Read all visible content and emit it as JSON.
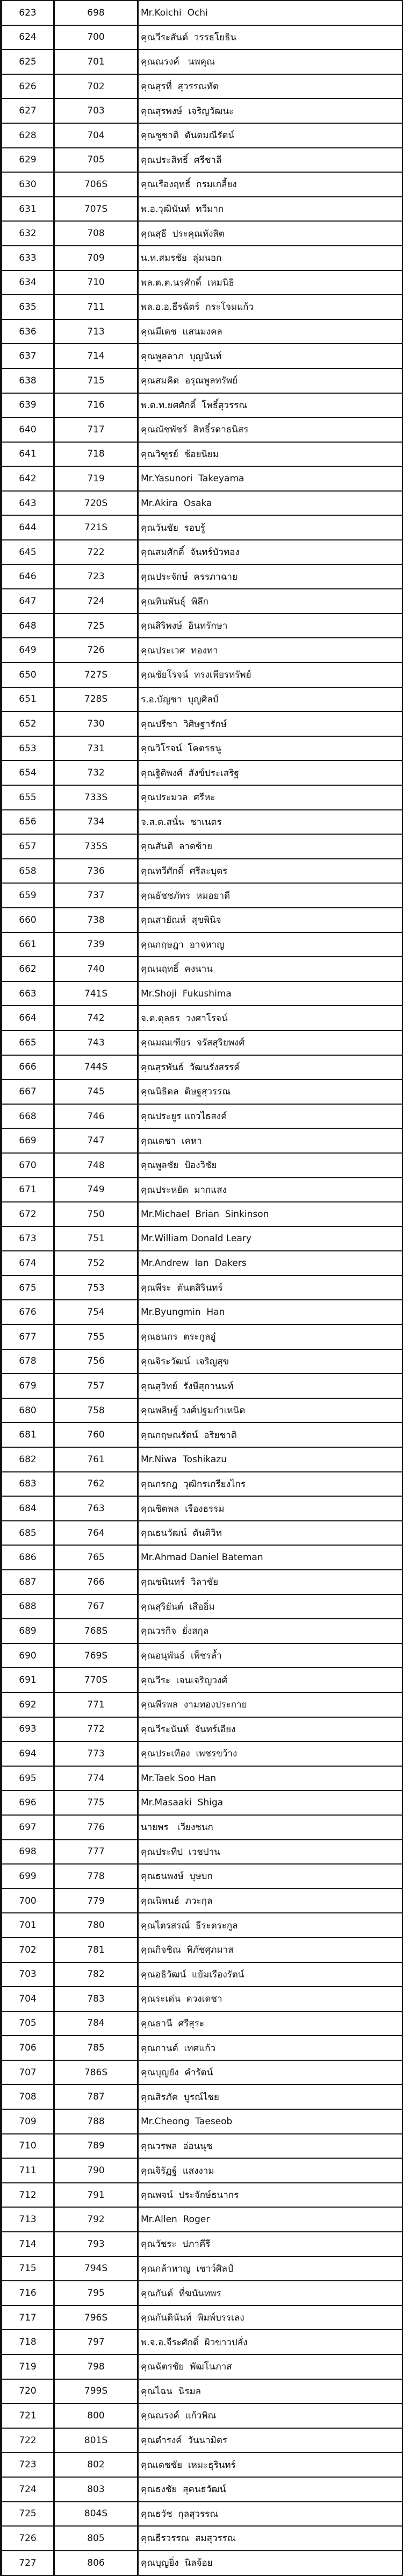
{
  "rows": [
    [
      "623",
      "698",
      "Mr.Koichi  Ochi"
    ],
    [
      "624",
      "700",
      "คุณวีระสันต์  วรรธโยธิน"
    ],
    [
      "625",
      "701",
      "คุณณรงค์   นพคุณ"
    ],
    [
      "626",
      "702",
      "คุณสุรที่  สุวรรณทัต"
    ],
    [
      "627",
      "703",
      "คุณสุรพงษ์  เจริญวัฒนะ"
    ],
    [
      "628",
      "704",
      "คุณชูชาติ  ตันตมณีรัตน์"
    ],
    [
      "629",
      "705",
      "คุณประสิทธิ์  ศรีชาลี"
    ],
    [
      "630",
      "706S",
      "คุณเรืองฤทธิ์  กรมเกลี้ยง"
    ],
    [
      "631",
      "707S",
      "พ.อ.วุฒินันท์  ทวีมาก"
    ],
    [
      "632",
      "708",
      "คุณสุธี  ประคุณหังสิต"
    ],
    [
      "633",
      "709",
      "น.ท.สมรชัย  ลุ่มนอก"
    ],
    [
      "634",
      "710",
      "พล.ต.ต.นรศักดิ์  เหมนิธิ"
    ],
    [
      "635",
      "711",
      "พล.อ.อ.ธีรฉัตร์  กระโจมแก้ว"
    ],
    [
      "636",
      "713",
      "คุณมีเดช  แสนมงคล"
    ],
    [
      "637",
      "714",
      "คุณพูลลาภ  บุญนันท์"
    ],
    [
      "638",
      "715",
      "คุณสมคิด  อรุณพูลทรัพย์"
    ],
    [
      "639",
      "716",
      "พ.ต.ท.ยศศักดิ์  โพธิ์สุวรรณ"
    ],
    [
      "640",
      "717",
      "คุณณัชพัชร์  สิทธิ์รดาธนิสร"
    ],
    [
      "641",
      "718",
      "คุณวิฑูรย์  ช้อยนิยม"
    ],
    [
      "642",
      "719",
      "Mr.Yasunori  Takeyama"
    ],
    [
      "643",
      "720S",
      "Mr.Akira  Osaka"
    ],
    [
      "644",
      "721S",
      "คุณวันชัย  รอบรู้"
    ],
    [
      "645",
      "722",
      "คุณสมศักดิ์  จันทร์บัวทอง"
    ],
    [
      "646",
      "723",
      "คุณประจักษ์  ครรภาฉาย"
    ],
    [
      "647",
      "724",
      "คุณทินพันธุ์  พิลึก"
    ],
    [
      "648",
      "725",
      "คุณสิริพงษ์  อินทรักษา"
    ],
    [
      "649",
      "726",
      "คุณประเวศ  ทองทา"
    ],
    [
      "650",
      "727S",
      "คุณชัยโรจน์  ทรงเพียรทรัพย์"
    ],
    [
      "651",
      "728S",
      "ร.อ.บัญชา  บุญศิลป์"
    ],
    [
      "652",
      "730",
      "คุณปรีชา  วิศิษฐารักษ์"
    ],
    [
      "653",
      "731",
      "คุณวิโรจน์  โคตรธนู"
    ],
    [
      "654",
      "732",
      "คุณฐิติพงศ์  สังข์ประเสริฐ"
    ],
    [
      "655",
      "733S",
      "คุณประมวล  ศรีหะ"
    ],
    [
      "656",
      "734",
      "จ.ส.ต.สนั่น  ชาเนตร"
    ],
    [
      "657",
      "735S",
      "คุณสันติ  ลาดซ้าย"
    ],
    [
      "658",
      "736",
      "คุณทวีศักดิ์  ศรีละบุตร"
    ],
    [
      "659",
      "737",
      "คุณธัชชภัทร  หมอยาดี"
    ],
    [
      "660",
      "738",
      "คุณสายัณห์  สุขพินิจ"
    ],
    [
      "661",
      "739",
      "คุณกฤษฎา  อาจหาญ"
    ],
    [
      "662",
      "740",
      "คุณนฤทธิ์  คงนาน"
    ],
    [
      "663",
      "741S",
      "Mr.Shoji  Fukushima"
    ],
    [
      "664",
      "742",
      "จ.ต.ตุลธร  วงศาโรจน์"
    ],
    [
      "665",
      "743",
      "คุณมณเฑียร  จรัสสุริยพงศ์"
    ],
    [
      "666",
      "744S",
      "คุณสุรพันธ์  วัฒนรังสรรค์"
    ],
    [
      "667",
      "745",
      "คุณนิธิดล  ดิษฐสุวรรณ"
    ],
    [
      "668",
      "746",
      "คุณประยูร แถวไธสงค์"
    ],
    [
      "669",
      "747",
      "คุณเดชา  เคหา"
    ],
    [
      "670",
      "748",
      "คุณพูลชัย  ป้องวิชัย"
    ],
    [
      "671",
      "749",
      "คุณประหยัด  มากแสง"
    ],
    [
      "672",
      "750",
      "Mr.Michael  Brian  Sinkinson"
    ],
    [
      "673",
      "751",
      "Mr.William Donald Leary"
    ],
    [
      "674",
      "752",
      "Mr.Andrew  Ian  Dakers"
    ],
    [
      "675",
      "753",
      "คุณพีระ  ตันตสิรินทร์"
    ],
    [
      "676",
      "754",
      "Mr.Byungmin  Han"
    ],
    [
      "677",
      "755",
      "คุณธนกร  ตระกูลอู๋"
    ],
    [
      "678",
      "756",
      "คุณจิระวัฒน์  เจริญสุข"
    ],
    [
      "679",
      "757",
      "คุณสุวิทย์  รังษีสุกานนท์"
    ],
    [
      "680",
      "758",
      "คุณพลิษฐ์ วงศ์ปฐมกำเหนิด"
    ],
    [
      "681",
      "760",
      "คุณกฤษณรัตน์  อริยชาติ"
    ],
    [
      "682",
      "761",
      "Mr.Niwa  Toshikazu"
    ],
    [
      "683",
      "762",
      "คุณกรกฎ  วุฒิกรเกรียงไกร"
    ],
    [
      "684",
      "763",
      "คุณชิตพล  เรืองธรรม"
    ],
    [
      "685",
      "764",
      "คุณธนวัฒน์  ตันติวิท"
    ],
    [
      "686",
      "765",
      "Mr.Ahmad Daniel Bateman"
    ],
    [
      "687",
      "766",
      "คุณชนินทร์  วิลาชัย"
    ],
    [
      "688",
      "767",
      "คุณสุริยันต์  เสืออิ่ม"
    ],
    [
      "689",
      "768S",
      "คุณวรกิจ  ยั่งสกุล"
    ],
    [
      "690",
      "769S",
      "คุณอนุพันธ์  เพ็ชรล้ำ"
    ],
    [
      "691",
      "770S",
      "คุณวีระ  เจนเจริญวงศ์"
    ],
    [
      "692",
      "771",
      "คุณพีรพล  งามทองประกาย"
    ],
    [
      "693",
      "772",
      "คุณวีระนันท์  จันทร์เอียง"
    ],
    [
      "694",
      "773",
      "คุณประเทือง  เพชรขว้าง"
    ],
    [
      "695",
      "774",
      "Mr.Taek Soo Han"
    ],
    [
      "696",
      "775",
      "Mr.Masaaki  Shiga"
    ],
    [
      "697",
      "776",
      "นายพร   เวียงชนก"
    ],
    [
      "698",
      "777",
      "คุณประทีป  เวชปาน"
    ],
    [
      "699",
      "778",
      "คุณธนพงษ์  บุษบก"
    ],
    [
      "700",
      "779",
      "คุณนิพนธ์  ภวะกุล"
    ],
    [
      "701",
      "780",
      "คุณไตรสรณ์  ธีระตระกูล"
    ],
    [
      "702",
      "781",
      "คุณกิจชิณ  พิภัชศุภมาส"
    ],
    [
      "703",
      "782",
      "คุณอธิวัฒน์  แย้มเรืองรัตน์"
    ],
    [
      "704",
      "783",
      "คุณระเด่น  ดวงเดชา"
    ],
    [
      "705",
      "784",
      "คุณธานี  ศรีสุระ"
    ],
    [
      "706",
      "785",
      "คุณกานต์  เทศแก้ว"
    ],
    [
      "707",
      "786S",
      "คุณบุญยัง  คำรัตน์"
    ],
    [
      "708",
      "787",
      "คุณสิรภัค  บูรณ์ไชย"
    ],
    [
      "709",
      "788",
      "Mr.Cheong  Taeseob"
    ],
    [
      "710",
      "789",
      "คุณวรพล  อ่อนนุช"
    ],
    [
      "711",
      "790",
      "คุณจิรัฏฐ์  แสงงาม"
    ],
    [
      "712",
      "791",
      "คุณพจน์  ประจักษ์ธนากร"
    ],
    [
      "713",
      "792",
      "Mr.Allen  Roger"
    ],
    [
      "714",
      "793",
      "คุณวัชระ  ปภาคีรี"
    ],
    [
      "715",
      "794S",
      "คุณกล้าหาญ  เชาว์ศิลป์"
    ],
    [
      "716",
      "795",
      "คุณกันต์  ที่ฆนันทพร"
    ],
    [
      "717",
      "796S",
      "คุณกันตินันท์  พิมพ์บรรเลง"
    ],
    [
      "718",
      "797",
      "พ.จ.อ.จีระศักดิ์  ผิวขาวปลั่ง"
    ],
    [
      "719",
      "798",
      "คุณฉัตรชัย  พัฒโนภาส"
    ],
    [
      "720",
      "799S",
      "คุณไฉน  นิรมล"
    ],
    [
      "721",
      "800",
      "คุณณรงค์  แก้วพิณ"
    ],
    [
      "722",
      "801S",
      "คุณดำรงค์  วันนามิตร"
    ],
    [
      "723",
      "802",
      "คุณเดชชัย  เหมะธุรินทร์"
    ],
    [
      "724",
      "803",
      "คุณธงชัย  สุคนธวัฒน์"
    ],
    [
      "725",
      "804S",
      "คุณธวัช  กุลสุวรรณ"
    ],
    [
      "726",
      "805",
      "คุณธีรวรรณ  สมสุวรรณ"
    ],
    [
      "727",
      "806",
      "คุณบุญยิ่ง  นิลจ้อย"
    ]
  ]
}
